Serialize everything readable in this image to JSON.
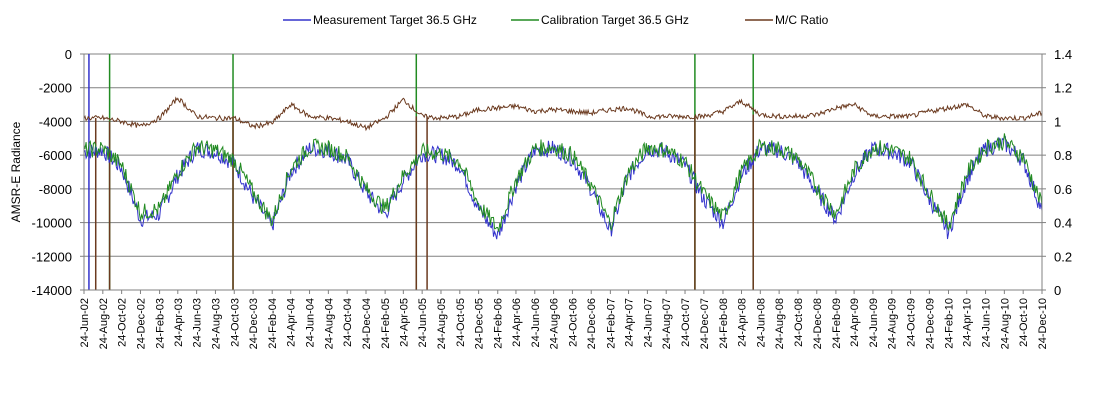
{
  "chart_data": {
    "type": "line",
    "title": "",
    "xlabel": "",
    "ylabel": "AMSR-E Radiance",
    "y2label": "",
    "ylim": [
      -14000,
      0
    ],
    "y2lim": [
      0,
      1.4
    ],
    "yticks": [
      0,
      -2000,
      -4000,
      -6000,
      -8000,
      -10000,
      -12000,
      -14000
    ],
    "y2ticks": [
      1.4,
      1.2,
      1,
      0.8,
      0.6,
      0.4,
      0.2,
      0
    ],
    "xlim": [
      "2002-06-24",
      "2010-12-24"
    ],
    "grid": "horizontal",
    "legend_position": "top-center",
    "x_tick_labels": [
      "24-Jun-02",
      "24-Aug-02",
      "24-Oct-02",
      "24-Dec-02",
      "24-Feb-03",
      "24-Apr-03",
      "24-Jun-03",
      "24-Aug-03",
      "24-Oct-03",
      "24-Dec-03",
      "24-Feb-04",
      "24-Apr-04",
      "24-Jun-04",
      "24-Aug-04",
      "24-Oct-04",
      "24-Dec-04",
      "24-Feb-05",
      "24-Apr-05",
      "24-Jun-05",
      "24-Aug-05",
      "24-Oct-05",
      "24-Dec-05",
      "24-Feb-06",
      "24-Apr-06",
      "24-Jun-06",
      "24-Aug-06",
      "24-Oct-06",
      "24-Dec-06",
      "24-Feb-07",
      "24-Apr-07",
      "24-Jun-07",
      "24-Aug-07",
      "24-Oct-07",
      "24-Dec-07",
      "24-Feb-08",
      "24-Apr-08",
      "24-Jun-08",
      "24-Aug-08",
      "24-Oct-08",
      "24-Dec-08",
      "24-Feb-09",
      "24-Apr-09",
      "24-Jun-09",
      "24-Aug-09",
      "24-Oct-09",
      "24-Dec-09",
      "24-Feb-10",
      "24-Apr-10",
      "24-Jun-10",
      "24-Aug-10",
      "24-Oct-10",
      "24-Dec-10"
    ],
    "series": [
      {
        "name": "Measurement Target 36.5 GHz",
        "axis": "left",
        "color": "#3333cc",
        "x": [
          "2002-06-24",
          "2002-08-24",
          "2002-10-24",
          "2002-12-24",
          "2003-02-24",
          "2003-04-24",
          "2003-06-24",
          "2003-08-24",
          "2003-10-24",
          "2003-12-24",
          "2004-02-24",
          "2004-04-24",
          "2004-06-24",
          "2004-08-24",
          "2004-10-24",
          "2004-12-24",
          "2005-02-24",
          "2005-04-24",
          "2005-06-24",
          "2005-08-24",
          "2005-10-24",
          "2005-12-24",
          "2006-02-24",
          "2006-04-24",
          "2006-06-24",
          "2006-08-24",
          "2006-10-24",
          "2006-12-24",
          "2007-02-24",
          "2007-04-24",
          "2007-06-24",
          "2007-08-24",
          "2007-10-24",
          "2007-12-24",
          "2008-02-24",
          "2008-04-24",
          "2008-06-24",
          "2008-08-24",
          "2008-10-24",
          "2008-12-24",
          "2009-02-24",
          "2009-04-24",
          "2009-06-24",
          "2009-08-24",
          "2009-10-24",
          "2009-12-24",
          "2010-02-24",
          "2010-04-24",
          "2010-06-24",
          "2010-08-24",
          "2010-10-24",
          "2010-12-24"
        ],
        "values": [
          -5800,
          -5700,
          -6800,
          -9800,
          -9500,
          -7200,
          -5600,
          -5800,
          -6500,
          -8500,
          -10200,
          -7000,
          -5600,
          -5700,
          -6300,
          -8200,
          -9500,
          -7500,
          -5900,
          -6000,
          -6600,
          -9200,
          -10800,
          -7800,
          -5700,
          -5600,
          -6200,
          -8000,
          -10500,
          -7200,
          -5600,
          -5800,
          -6600,
          -8600,
          -10000,
          -7200,
          -5600,
          -5700,
          -6400,
          -8200,
          -9800,
          -7100,
          -5600,
          -5800,
          -6400,
          -8600,
          -10600,
          -7400,
          -5600,
          -5300,
          -6300,
          -9300
        ]
      },
      {
        "name": "Calibration Target 36.5 GHz",
        "axis": "left",
        "color": "#228b22",
        "x": [
          "2002-06-24",
          "2002-08-24",
          "2002-10-24",
          "2002-12-24",
          "2003-02-24",
          "2003-04-24",
          "2003-06-24",
          "2003-08-24",
          "2003-10-24",
          "2003-12-24",
          "2004-02-24",
          "2004-04-24",
          "2004-06-24",
          "2004-08-24",
          "2004-10-24",
          "2004-12-24",
          "2005-02-24",
          "2005-04-24",
          "2005-06-24",
          "2005-08-24",
          "2005-10-24",
          "2005-12-24",
          "2006-02-24",
          "2006-04-24",
          "2006-06-24",
          "2006-08-24",
          "2006-10-24",
          "2006-12-24",
          "2007-02-24",
          "2007-04-24",
          "2007-06-24",
          "2007-08-24",
          "2007-10-24",
          "2007-12-24",
          "2008-02-24",
          "2008-04-24",
          "2008-06-24",
          "2008-08-24",
          "2008-10-24",
          "2008-12-24",
          "2009-02-24",
          "2009-04-24",
          "2009-06-24",
          "2009-08-24",
          "2009-10-24",
          "2009-12-24",
          "2010-02-24",
          "2010-04-24",
          "2010-06-24",
          "2010-08-24",
          "2010-10-24",
          "2010-12-24"
        ],
        "values": [
          -5700,
          -5600,
          -6600,
          -9400,
          -9200,
          -7000,
          -5500,
          -5700,
          -6300,
          -8200,
          -9900,
          -6800,
          -5500,
          -5600,
          -6100,
          -8000,
          -9200,
          -7200,
          -5800,
          -5900,
          -6400,
          -8900,
          -10400,
          -7500,
          -5600,
          -5500,
          -6000,
          -7800,
          -10100,
          -7000,
          -5500,
          -5700,
          -6400,
          -8300,
          -9700,
          -7000,
          -5500,
          -5600,
          -6200,
          -7900,
          -9500,
          -6900,
          -5500,
          -5700,
          -6200,
          -8300,
          -10200,
          -7100,
          -5500,
          -5200,
          -6100,
          -9000
        ]
      },
      {
        "name": "M/C Ratio",
        "axis": "right",
        "color": "#6b3a1f",
        "x": [
          "2002-06-24",
          "2002-08-24",
          "2002-10-24",
          "2002-12-24",
          "2003-02-24",
          "2003-04-24",
          "2003-06-24",
          "2003-08-24",
          "2003-10-24",
          "2003-12-24",
          "2004-02-24",
          "2004-04-24",
          "2004-06-24",
          "2004-08-24",
          "2004-10-24",
          "2004-12-24",
          "2005-02-24",
          "2005-04-24",
          "2005-06-24",
          "2005-08-24",
          "2005-10-24",
          "2005-12-24",
          "2006-02-24",
          "2006-04-24",
          "2006-06-24",
          "2006-08-24",
          "2006-10-24",
          "2006-12-24",
          "2007-02-24",
          "2007-04-24",
          "2007-06-24",
          "2007-08-24",
          "2007-10-24",
          "2007-12-24",
          "2008-02-24",
          "2008-04-24",
          "2008-06-24",
          "2008-08-24",
          "2008-10-24",
          "2008-12-24",
          "2009-02-24",
          "2009-04-24",
          "2009-06-24",
          "2009-08-24",
          "2009-10-24",
          "2009-12-24",
          "2010-02-24",
          "2010-04-24",
          "2010-06-24",
          "2010-08-24",
          "2010-10-24",
          "2010-12-24"
        ],
        "values": [
          1.02,
          1.02,
          1.0,
          0.97,
          1.02,
          1.14,
          1.03,
          1.02,
          1.02,
          0.97,
          0.99,
          1.1,
          1.03,
          1.02,
          1.0,
          0.96,
          1.02,
          1.13,
          1.03,
          1.02,
          1.03,
          1.07,
          1.08,
          1.09,
          1.06,
          1.07,
          1.06,
          1.05,
          1.07,
          1.08,
          1.03,
          1.03,
          1.03,
          1.03,
          1.06,
          1.12,
          1.04,
          1.03,
          1.03,
          1.04,
          1.08,
          1.1,
          1.03,
          1.03,
          1.03,
          1.06,
          1.08,
          1.1,
          1.03,
          1.02,
          1.02,
          1.05
        ]
      }
    ],
    "spikes": [
      {
        "date": "2002-07-10",
        "series": "Measurement Target 36.5 GHz",
        "values": [
          -14000,
          0
        ]
      },
      {
        "date": "2002-08-01",
        "series": "M/C Ratio",
        "values": [
          0,
          1.02
        ]
      },
      {
        "date": "2002-09-15",
        "series": "Calibration Target 36.5 GHz",
        "values": [
          -14000,
          0
        ]
      },
      {
        "date": "2002-09-15",
        "series": "M/C Ratio",
        "values": [
          0,
          1.0
        ]
      },
      {
        "date": "2003-10-20",
        "series": "Calibration Target 36.5 GHz",
        "values": [
          -14000,
          0
        ]
      },
      {
        "date": "2003-10-20",
        "series": "M/C Ratio",
        "values": [
          0,
          1.02
        ]
      },
      {
        "date": "2005-06-05",
        "series": "Calibration Target 36.5 GHz",
        "values": [
          -14000,
          0
        ]
      },
      {
        "date": "2005-06-05",
        "series": "M/C Ratio",
        "values": [
          0,
          1.03
        ]
      },
      {
        "date": "2005-07-10",
        "series": "M/C Ratio",
        "values": [
          0,
          1.03
        ]
      },
      {
        "date": "2007-11-25",
        "series": "Calibration Target 36.5 GHz",
        "values": [
          -14000,
          0
        ]
      },
      {
        "date": "2007-11-25",
        "series": "M/C Ratio",
        "values": [
          0,
          1.03
        ]
      },
      {
        "date": "2008-06-01",
        "series": "Calibration Target 36.5 GHz",
        "values": [
          -14000,
          0
        ]
      },
      {
        "date": "2008-06-01",
        "series": "M/C Ratio",
        "values": [
          0,
          1.04
        ]
      }
    ]
  }
}
